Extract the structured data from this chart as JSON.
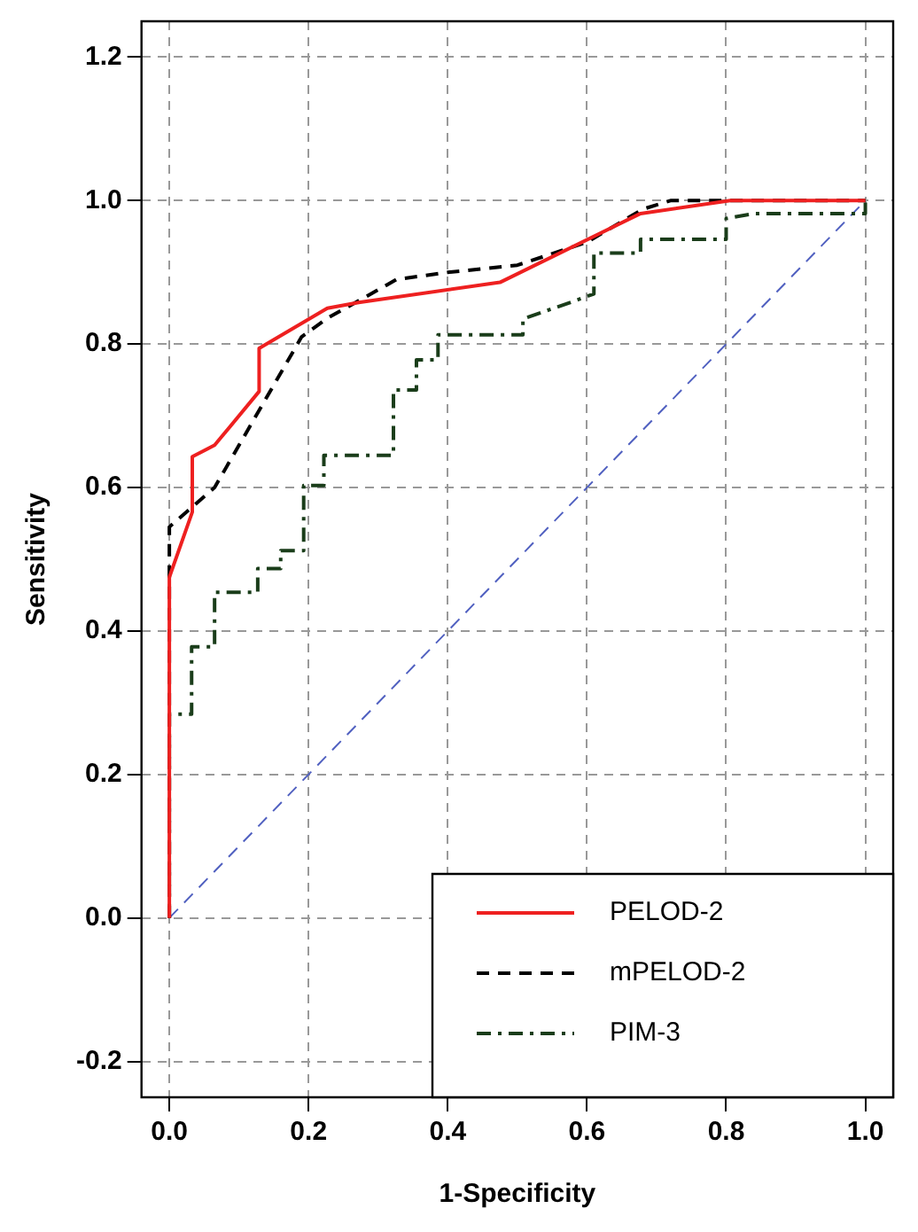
{
  "chart_data": {
    "type": "line",
    "xlabel": "1-Specificity",
    "ylabel": "Sensitivity",
    "xlim": [
      -0.04,
      1.04
    ],
    "ylim": [
      -0.25,
      1.25
    ],
    "xticks": [
      {
        "value": 0,
        "label": "0.0"
      },
      {
        "value": 0.2,
        "label": "0.2"
      },
      {
        "value": 0.4,
        "label": "0.4"
      },
      {
        "value": 0.6,
        "label": "0.6"
      },
      {
        "value": 0.8,
        "label": "0.8"
      },
      {
        "value": 1.0,
        "label": "1.0"
      }
    ],
    "yticks": [
      {
        "value": -0.2,
        "label": "-0.2"
      },
      {
        "value": 0,
        "label": "0.0"
      },
      {
        "value": 0.2,
        "label": "0.2"
      },
      {
        "value": 0.4,
        "label": "0.4"
      },
      {
        "value": 0.6,
        "label": "0.6"
      },
      {
        "value": 0.8,
        "label": "0.8"
      },
      {
        "value": 1.0,
        "label": "1.0"
      },
      {
        "value": 1.2,
        "label": "1.2"
      }
    ],
    "grid": true,
    "legend": "bottom right",
    "marker": "none",
    "series": [
      {
        "name": "PELOD-2",
        "color": "#ee2020",
        "line_style": "solid",
        "x": [
          0,
          0,
          0.033,
          0.033,
          0.065,
          0.129,
          0.129,
          0.227,
          0.272,
          0.475,
          0.677,
          0.806,
          1
        ],
        "values": [
          0,
          0.475,
          0.566,
          0.643,
          0.659,
          0.734,
          0.794,
          0.85,
          0.858,
          0.886,
          0.982,
          1,
          1
        ]
      },
      {
        "name": "mPELOD-2",
        "color": "#000000",
        "line_style": "dashed",
        "x": [
          0,
          0,
          0.065,
          0.19,
          0.227,
          0.31,
          0.326,
          0.4,
          0.5,
          0.6,
          0.68,
          0.72,
          1
        ],
        "values": [
          0,
          0.545,
          0.6,
          0.81,
          0.836,
          0.881,
          0.89,
          0.9,
          0.91,
          0.942,
          0.988,
          1,
          1
        ]
      },
      {
        "name": "PIM-3",
        "color": "#1a3d1a",
        "line_style": "dashdot",
        "x": [
          0,
          0,
          0.032,
          0.032,
          0.065,
          0.065,
          0.127,
          0.127,
          0.16,
          0.16,
          0.193,
          0.193,
          0.222,
          0.222,
          0.322,
          0.322,
          0.355,
          0.355,
          0.386,
          0.386,
          0.508,
          0.508,
          0.573,
          0.61,
          0.61,
          0.677,
          0.677,
          0.8,
          0.8,
          0.84,
          1,
          1
        ],
        "values": [
          0,
          0.284,
          0.284,
          0.378,
          0.378,
          0.454,
          0.454,
          0.487,
          0.487,
          0.512,
          0.512,
          0.603,
          0.603,
          0.645,
          0.645,
          0.736,
          0.736,
          0.778,
          0.778,
          0.813,
          0.813,
          0.835,
          0.857,
          0.87,
          0.927,
          0.927,
          0.946,
          0.946,
          0.975,
          0.982,
          0.982,
          1
        ]
      },
      {
        "color": "#5060c0",
        "line_style": "dashed",
        "x": [
          0,
          1
        ],
        "values": [
          0,
          1
        ]
      }
    ]
  }
}
